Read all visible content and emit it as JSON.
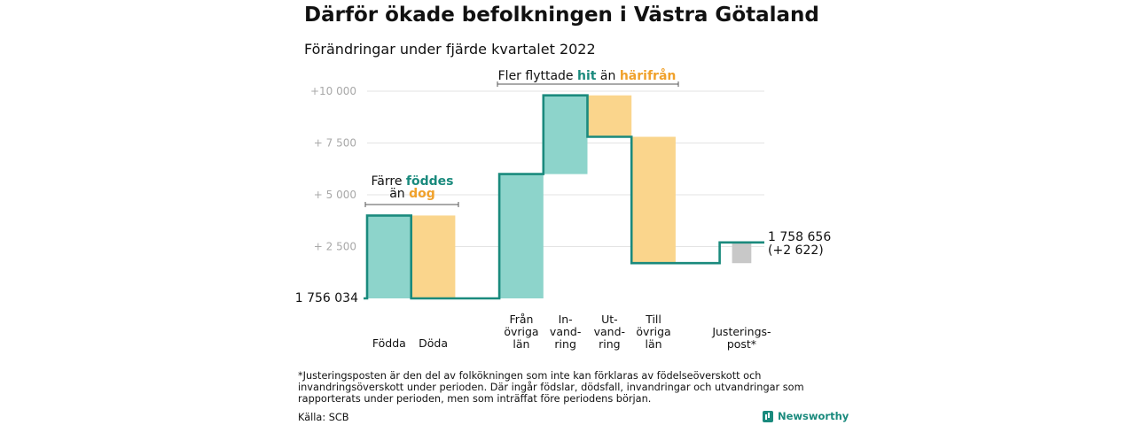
{
  "title": "Därför ökade befolkningen i Västra Götaland",
  "subtitle": "Förändringar under fjärde kvartalet 2022",
  "footnote": "*Justeringsposten är den del av folkökningen som inte kan förklaras av födelseöverskott och invandringsöverskott under perioden. Där ingår födslar, dödsfall, invandringar och utvandringar som rapporterats under perioden, men som inträffat före periodens början.",
  "source": "Källa: SCB",
  "brand": "Newsworthy",
  "colors": {
    "increase": "#8dd4cb",
    "decrease": "#fad58c",
    "adjustment": "#c8c8c8",
    "line": "#1a8a7d",
    "teal_text": "#1a8a7d",
    "orange_text": "#f0a12b"
  },
  "chart_data": {
    "type": "waterfall",
    "baseline": 1756034,
    "baseline_label": "1 756 034",
    "end_value": 1758656,
    "end_labels": [
      "1 758 656",
      "(+2 622)"
    ],
    "ylim": [
      0,
      10300
    ],
    "y_ticks": [
      {
        "value": 2500,
        "label": "+ 2 500"
      },
      {
        "value": 5000,
        "label": "+ 5 000"
      },
      {
        "value": 7500,
        "label": "+ 7 500"
      },
      {
        "value": 10000,
        "label": "+10 000"
      }
    ],
    "steps": [
      {
        "label": [
          "Födda"
        ],
        "delta": 4000,
        "kind": "increase"
      },
      {
        "label": [
          "Döda"
        ],
        "delta": -4000,
        "kind": "decrease"
      },
      {
        "label": [],
        "delta": 0,
        "kind": "gap"
      },
      {
        "label": [
          "Från",
          "övriga",
          "län"
        ],
        "delta": 6000,
        "kind": "increase"
      },
      {
        "label": [
          "In-",
          "vand-",
          "ring"
        ],
        "delta": 3800,
        "kind": "increase"
      },
      {
        "label": [
          "Ut-",
          "vand-",
          "ring"
        ],
        "delta": -2000,
        "kind": "decrease"
      },
      {
        "label": [
          "Till",
          "övriga",
          "län"
        ],
        "delta": -6100,
        "kind": "decrease"
      },
      {
        "label": [],
        "delta": 0,
        "kind": "gap"
      },
      {
        "label": [
          "Justerings-",
          "post*"
        ],
        "delta": 1000,
        "kind": "adjustment"
      }
    ],
    "annotations": [
      {
        "text_parts": [
          [
            "Färre ",
            "normal"
          ],
          [
            "föddes",
            "teal"
          ]
        ],
        "text_parts2": [
          [
            "än ",
            "normal"
          ],
          [
            "dog",
            "orange"
          ]
        ]
      },
      {
        "text_parts": [
          [
            "Fler flyttade ",
            "normal"
          ],
          [
            "hit",
            "teal"
          ],
          [
            " än ",
            "normal"
          ],
          [
            "härifrån",
            "orange"
          ]
        ]
      }
    ]
  }
}
